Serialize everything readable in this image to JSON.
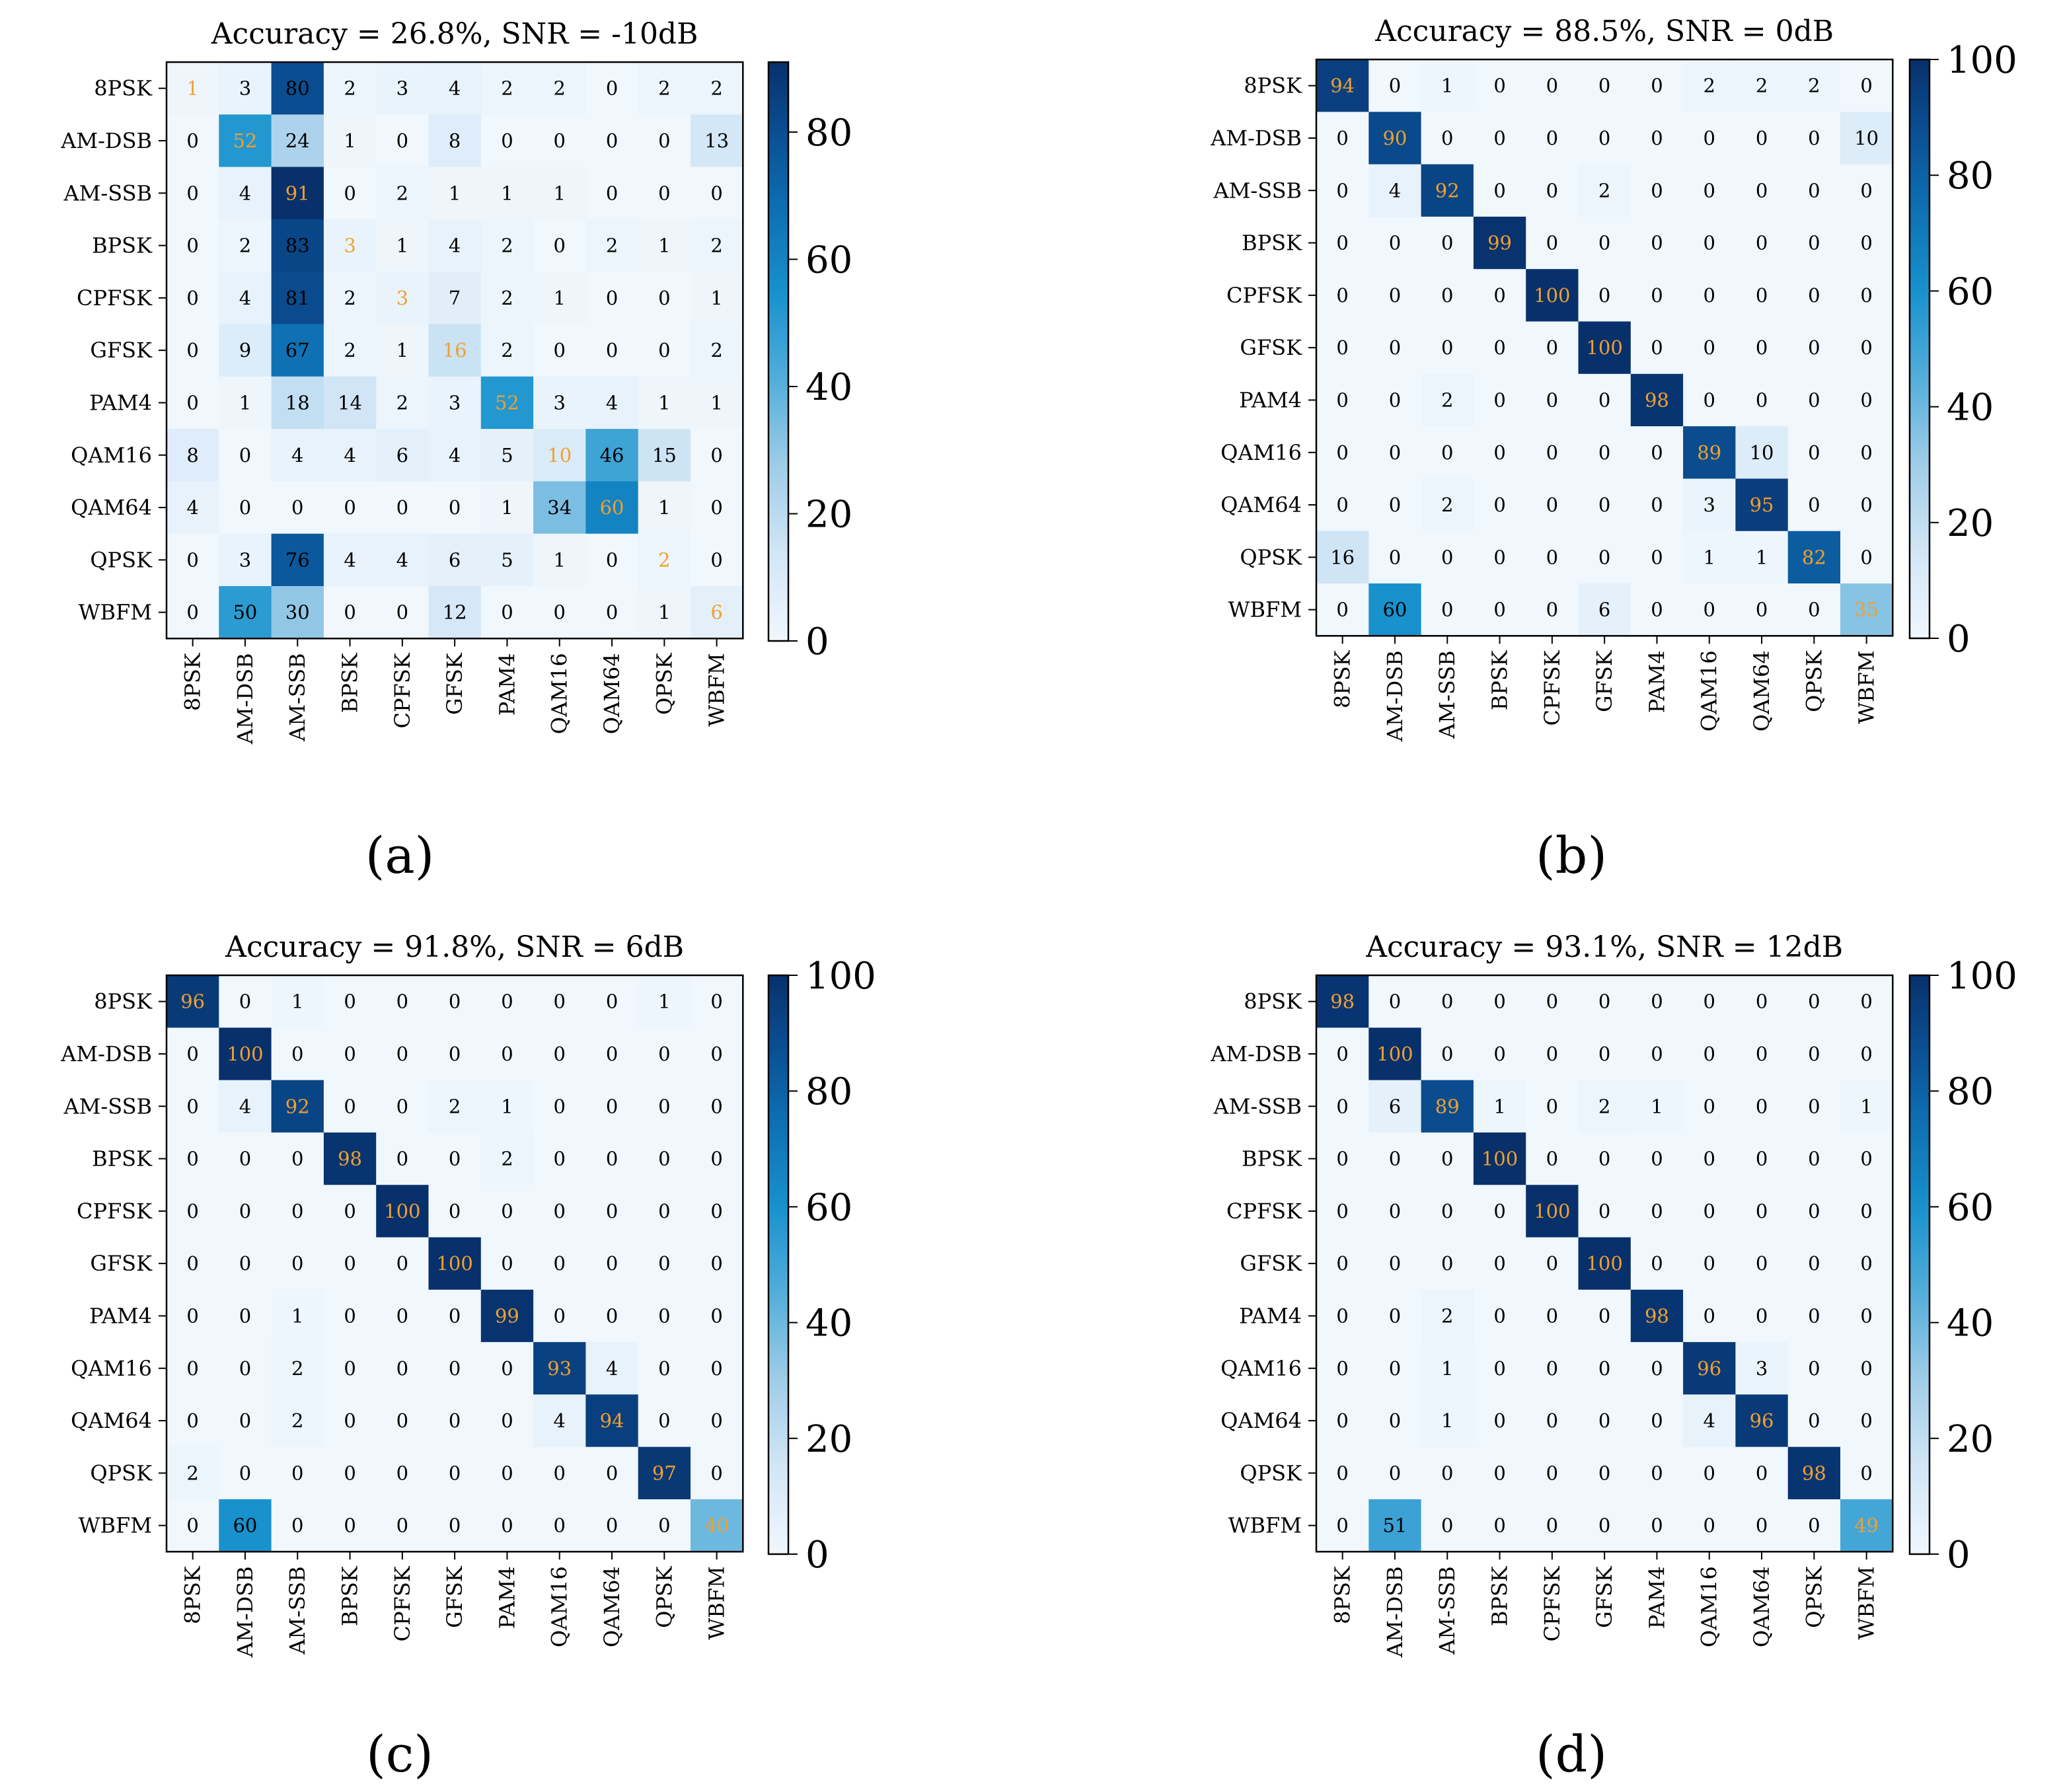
{
  "labels": [
    "8PSK",
    "AM-DSB",
    "AM-SSB",
    "BPSK",
    "CPFSK",
    "GFSK",
    "PAM4",
    "QAM16",
    "QAM64",
    "QPSK",
    "WBFM"
  ],
  "colors": {
    "diagonal_text": "#f0a030",
    "offdiag_text": "#000000",
    "cmap_low": "#f7fbff",
    "cmap_high": "#08306b"
  },
  "chart_data": [
    {
      "type": "heatmap",
      "panel": "a",
      "title": "Accuracy = 26.8%, SNR = -10dB",
      "colorbar_max": 91,
      "colorbar_ticks": [
        0,
        20,
        40,
        60,
        80
      ],
      "values": [
        [
          1,
          3,
          80,
          2,
          3,
          4,
          2,
          2,
          0,
          2,
          2
        ],
        [
          0,
          52,
          24,
          1,
          0,
          8,
          0,
          0,
          0,
          0,
          13
        ],
        [
          0,
          4,
          91,
          0,
          2,
          1,
          1,
          1,
          0,
          0,
          0
        ],
        [
          0,
          2,
          83,
          3,
          1,
          4,
          2,
          0,
          2,
          1,
          2
        ],
        [
          0,
          4,
          81,
          2,
          3,
          7,
          2,
          1,
          0,
          0,
          1
        ],
        [
          0,
          9,
          67,
          2,
          1,
          16,
          2,
          0,
          0,
          0,
          2
        ],
        [
          0,
          1,
          18,
          14,
          2,
          3,
          52,
          3,
          4,
          1,
          1
        ],
        [
          8,
          0,
          4,
          4,
          6,
          4,
          5,
          10,
          46,
          15,
          0
        ],
        [
          4,
          0,
          0,
          0,
          0,
          0,
          1,
          34,
          60,
          1,
          0
        ],
        [
          0,
          3,
          76,
          4,
          4,
          6,
          5,
          1,
          0,
          2,
          0
        ],
        [
          0,
          50,
          30,
          0,
          0,
          12,
          0,
          0,
          0,
          1,
          6
        ]
      ]
    },
    {
      "type": "heatmap",
      "panel": "b",
      "title": "Accuracy = 88.5%, SNR = 0dB",
      "colorbar_max": 100,
      "colorbar_ticks": [
        0,
        20,
        40,
        60,
        80,
        100
      ],
      "values": [
        [
          94,
          0,
          1,
          0,
          0,
          0,
          0,
          2,
          2,
          2,
          0
        ],
        [
          0,
          90,
          0,
          0,
          0,
          0,
          0,
          0,
          0,
          0,
          10
        ],
        [
          0,
          4,
          92,
          0,
          0,
          2,
          0,
          0,
          0,
          0,
          0
        ],
        [
          0,
          0,
          0,
          99,
          0,
          0,
          0,
          0,
          0,
          0,
          0
        ],
        [
          0,
          0,
          0,
          0,
          100,
          0,
          0,
          0,
          0,
          0,
          0
        ],
        [
          0,
          0,
          0,
          0,
          0,
          100,
          0,
          0,
          0,
          0,
          0
        ],
        [
          0,
          0,
          2,
          0,
          0,
          0,
          98,
          0,
          0,
          0,
          0
        ],
        [
          0,
          0,
          0,
          0,
          0,
          0,
          0,
          89,
          10,
          0,
          0
        ],
        [
          0,
          0,
          2,
          0,
          0,
          0,
          0,
          3,
          95,
          0,
          0
        ],
        [
          16,
          0,
          0,
          0,
          0,
          0,
          0,
          1,
          1,
          82,
          0
        ],
        [
          0,
          60,
          0,
          0,
          0,
          6,
          0,
          0,
          0,
          0,
          35
        ]
      ]
    },
    {
      "type": "heatmap",
      "panel": "c",
      "title": "Accuracy = 91.8%, SNR = 6dB",
      "colorbar_max": 100,
      "colorbar_ticks": [
        0,
        20,
        40,
        60,
        80,
        100
      ],
      "values": [
        [
          96,
          0,
          1,
          0,
          0,
          0,
          0,
          0,
          0,
          1,
          0
        ],
        [
          0,
          100,
          0,
          0,
          0,
          0,
          0,
          0,
          0,
          0,
          0
        ],
        [
          0,
          4,
          92,
          0,
          0,
          2,
          1,
          0,
          0,
          0,
          0
        ],
        [
          0,
          0,
          0,
          98,
          0,
          0,
          2,
          0,
          0,
          0,
          0
        ],
        [
          0,
          0,
          0,
          0,
          100,
          0,
          0,
          0,
          0,
          0,
          0
        ],
        [
          0,
          0,
          0,
          0,
          0,
          100,
          0,
          0,
          0,
          0,
          0
        ],
        [
          0,
          0,
          1,
          0,
          0,
          0,
          99,
          0,
          0,
          0,
          0
        ],
        [
          0,
          0,
          2,
          0,
          0,
          0,
          0,
          93,
          4,
          0,
          0
        ],
        [
          0,
          0,
          2,
          0,
          0,
          0,
          0,
          4,
          94,
          0,
          0
        ],
        [
          2,
          0,
          0,
          0,
          0,
          0,
          0,
          0,
          0,
          97,
          0
        ],
        [
          0,
          60,
          0,
          0,
          0,
          0,
          0,
          0,
          0,
          0,
          40
        ]
      ]
    },
    {
      "type": "heatmap",
      "panel": "d",
      "title": "Accuracy = 93.1%, SNR = 12dB",
      "colorbar_max": 100,
      "colorbar_ticks": [
        0,
        20,
        40,
        60,
        80,
        100
      ],
      "values": [
        [
          98,
          0,
          0,
          0,
          0,
          0,
          0,
          0,
          0,
          0,
          0
        ],
        [
          0,
          100,
          0,
          0,
          0,
          0,
          0,
          0,
          0,
          0,
          0
        ],
        [
          0,
          6,
          89,
          1,
          0,
          2,
          1,
          0,
          0,
          0,
          1
        ],
        [
          0,
          0,
          0,
          100,
          0,
          0,
          0,
          0,
          0,
          0,
          0
        ],
        [
          0,
          0,
          0,
          0,
          100,
          0,
          0,
          0,
          0,
          0,
          0
        ],
        [
          0,
          0,
          0,
          0,
          0,
          100,
          0,
          0,
          0,
          0,
          0
        ],
        [
          0,
          0,
          2,
          0,
          0,
          0,
          98,
          0,
          0,
          0,
          0
        ],
        [
          0,
          0,
          1,
          0,
          0,
          0,
          0,
          96,
          3,
          0,
          0
        ],
        [
          0,
          0,
          1,
          0,
          0,
          0,
          0,
          4,
          96,
          0,
          0
        ],
        [
          0,
          0,
          0,
          0,
          0,
          0,
          0,
          0,
          0,
          98,
          0
        ],
        [
          0,
          51,
          0,
          0,
          0,
          0,
          0,
          0,
          0,
          0,
          49
        ]
      ]
    }
  ],
  "sublabels": [
    "(a)",
    "(b)",
    "(c)",
    "(d)"
  ]
}
